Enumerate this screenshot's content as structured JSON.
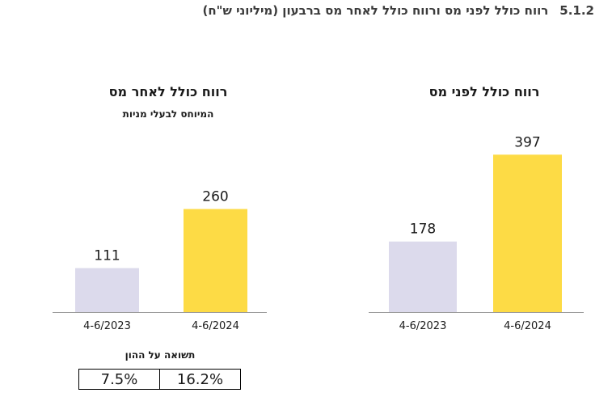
{
  "heading": {
    "number": "5.1.2",
    "text": "רווח כולל לפני מס ורווח כולל לאחר מס ברבעון (מיליוני ש\"ח)"
  },
  "colors": {
    "bar_2023": "#dcdaec",
    "bar_2024": "#fddb45",
    "axis": "#9a9a9a"
  },
  "chart_data": [
    {
      "type": "bar",
      "title": "רווח כולל לאחר מס",
      "subtitle": "המיוחס לבעלי מניות",
      "categories": [
        "4-6/2023",
        "4-6/2024"
      ],
      "values": [
        111,
        260
      ]
    },
    {
      "type": "bar",
      "title": "רווח כולל לפני מס",
      "categories": [
        "4-6/2023",
        "4-6/2024"
      ],
      "values": [
        178,
        397
      ]
    }
  ],
  "roe": {
    "label": "תשואה על ההון",
    "values": [
      "7.5%",
      "16.2%"
    ]
  }
}
